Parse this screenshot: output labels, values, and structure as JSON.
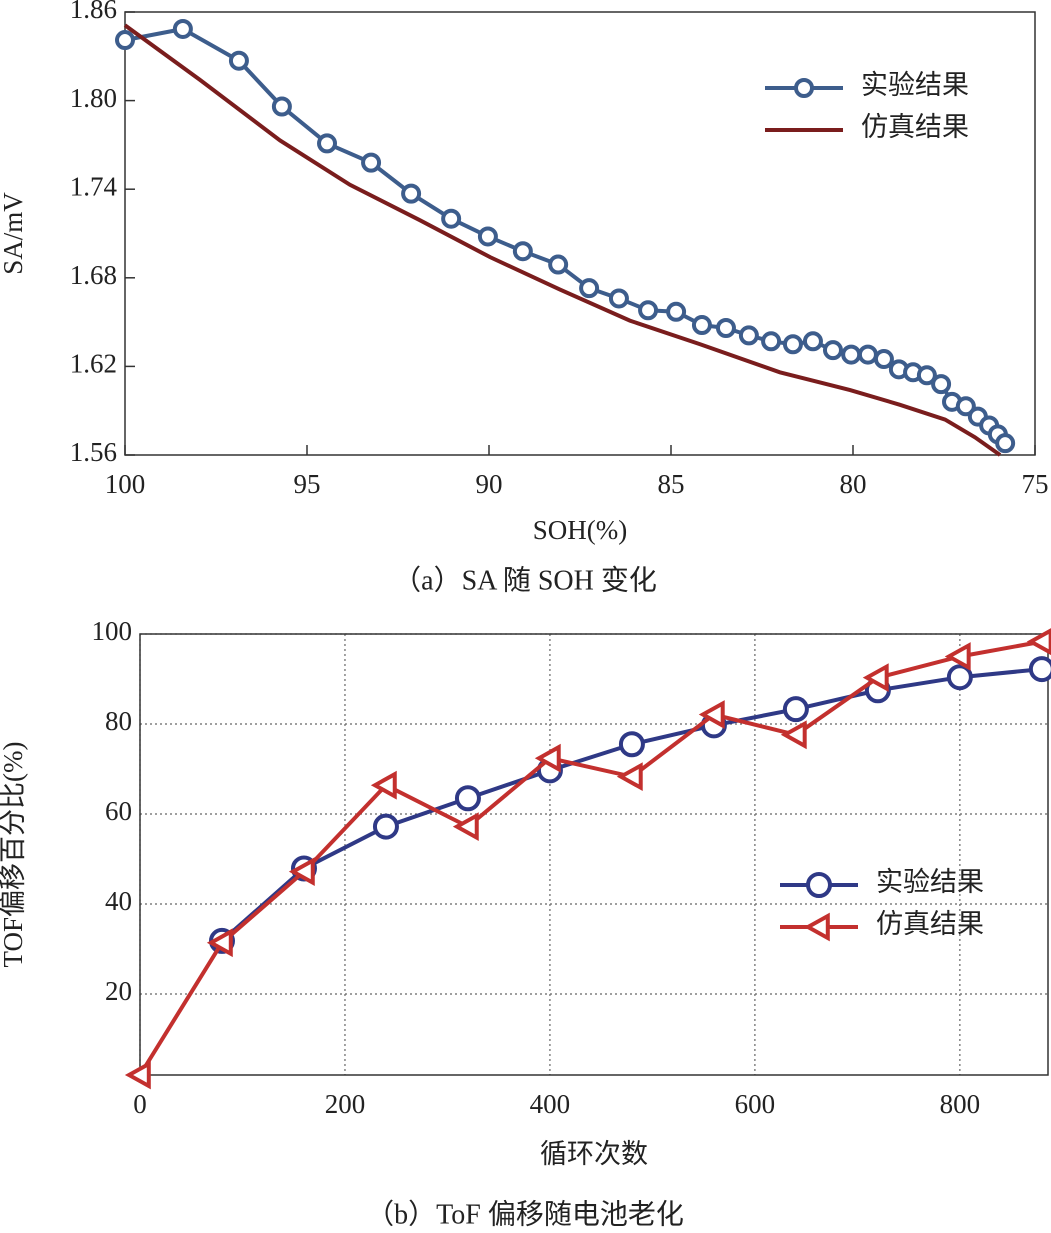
{
  "chart_data": [
    {
      "type": "line",
      "caption": "（a）SA 随 SOH 变化",
      "x_label": "SOH(%)",
      "y_label": "SA/mV",
      "xlim": [
        100,
        75
      ],
      "xticks": [
        100,
        95,
        90,
        85,
        80,
        75
      ],
      "ylim": [
        1.56,
        1.86
      ],
      "yticks": [
        1.56,
        1.62,
        1.68,
        1.74,
        {
          "value": 1.8,
          "label": "1.80"
        },
        1.86
      ],
      "grid": false,
      "legend": "upper right",
      "series": [
        {
          "name": "实验结果",
          "color": "#3d5d8c",
          "marker": "circle",
          "x": [
            100,
            98.41,
            96.87,
            95.69,
            94.45,
            93.24,
            92.14,
            91.04,
            90.03,
            89.07,
            88.1,
            87.25,
            86.43,
            85.63,
            84.86,
            84.15,
            83.49,
            82.86,
            82.25,
            81.65,
            81.1,
            80.55,
            80.05,
            79.59,
            79.15,
            78.74,
            78.35,
            77.97,
            77.58,
            77.28,
            76.9,
            76.57,
            76.26,
            76.02,
            75.82
          ],
          "values": [
            1.841,
            1.8485,
            1.827,
            1.796,
            1.771,
            1.758,
            1.737,
            1.72,
            1.708,
            1.698,
            1.689,
            1.673,
            1.666,
            1.658,
            1.657,
            1.648,
            1.646,
            1.641,
            1.637,
            1.635,
            1.637,
            1.631,
            1.628,
            1.628,
            1.625,
            1.618,
            1.616,
            1.614,
            1.608,
            1.596,
            1.593,
            1.586,
            1.58,
            1.574,
            1.568
          ]
        },
        {
          "name": "仿真结果",
          "color": "#7a1d1d",
          "marker": "none",
          "x": [
            100,
            97.94,
            95.74,
            93.82,
            91.9,
            89.97,
            88.05,
            86.13,
            84.2,
            82.01,
            80.08,
            78.71,
            77.47,
            76.65,
            75.96
          ],
          "values": [
            1.851,
            1.814,
            1.773,
            1.743,
            1.719,
            1.694,
            1.672,
            1.651,
            1.635,
            1.616,
            1.604,
            1.594,
            1.584,
            1.572,
            1.56
          ]
        }
      ]
    },
    {
      "type": "line",
      "caption": "（b）ToF 偏移随电池老化",
      "x_label": "循环次数",
      "y_label": "TOF偏移百分比(%)",
      "xlim": [
        0,
        886
      ],
      "xticks": [
        0,
        200,
        400,
        600,
        800
      ],
      "ylim": [
        2,
        100
      ],
      "yticks": [
        20,
        40,
        60,
        80,
        100
      ],
      "grid": true,
      "legend": "center right",
      "series": [
        {
          "name": "实验结果",
          "color": "#2f3986",
          "marker": "circle",
          "x": [
            80,
            160,
            240,
            320,
            400,
            480,
            560,
            640,
            720,
            800,
            880
          ],
          "values": [
            31.8,
            47.9,
            57.2,
            63.5,
            69.7,
            75.5,
            79.7,
            83.3,
            87.5,
            90.4,
            92.2
          ]
        },
        {
          "name": "仿真结果",
          "color": "#c3302e",
          "marker": "triangle-left",
          "x": [
            0,
            80,
            160,
            240,
            320,
            400,
            480,
            560,
            640,
            720,
            800,
            880
          ],
          "values": [
            2,
            31.4,
            47.2,
            66.4,
            57.2,
            72.4,
            68.3,
            82.1,
            77.6,
            90.3,
            95,
            98.3
          ]
        }
      ]
    }
  ]
}
